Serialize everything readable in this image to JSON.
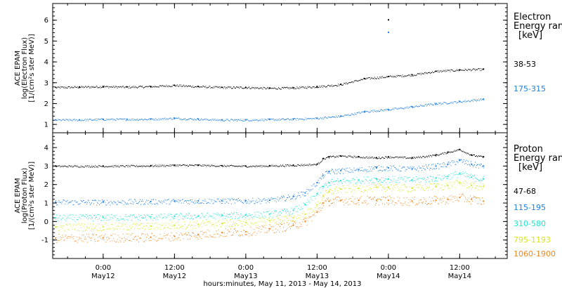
{
  "figure": {
    "xlabel": "hours:minutes, May 11, 2013 - May 14, 2013",
    "x_ticks": [
      {
        "hours": 12,
        "time": "0:00",
        "day": "May12"
      },
      {
        "hours": 24,
        "time": "12:00",
        "day": "May12"
      },
      {
        "hours": 36,
        "time": "0:00",
        "day": "May13"
      },
      {
        "hours": 48,
        "time": "12:00",
        "day": "May13"
      },
      {
        "hours": 60,
        "time": "0:00",
        "day": "May14"
      },
      {
        "hours": 72,
        "time": "12:00",
        "day": "May14"
      }
    ],
    "x_range_hours": [
      3.5,
      80
    ]
  },
  "chart_data": [
    {
      "type": "scatter",
      "panel": "electron",
      "ylabel": [
        "ACE EPAM",
        "log(Electron Flux)",
        "[1/(cm²s ster MeV)]"
      ],
      "ylim": [
        0.6,
        6.8
      ],
      "y_ticks": [
        1,
        2,
        3,
        4,
        5,
        6
      ],
      "legend_title": [
        "Electron",
        "Energy ran",
        "[keV]"
      ],
      "series": [
        {
          "name": "38-53",
          "color": "#000000",
          "x": [
            4,
            8,
            12,
            16,
            20,
            24,
            28,
            32,
            36,
            40,
            44,
            48,
            52,
            56,
            60,
            64,
            68,
            72,
            76
          ],
          "y": [
            2.78,
            2.8,
            2.82,
            2.8,
            2.82,
            2.88,
            2.82,
            2.78,
            2.78,
            2.74,
            2.76,
            2.82,
            2.92,
            3.2,
            3.3,
            3.38,
            3.55,
            3.62,
            3.65
          ]
        },
        {
          "name": "175-315",
          "color": "#1f7fdf",
          "x": [
            4,
            8,
            12,
            16,
            20,
            24,
            28,
            32,
            36,
            40,
            44,
            48,
            52,
            56,
            60,
            64,
            68,
            72,
            76
          ],
          "y": [
            1.22,
            1.22,
            1.25,
            1.25,
            1.26,
            1.3,
            1.26,
            1.22,
            1.22,
            1.24,
            1.26,
            1.3,
            1.4,
            1.62,
            1.72,
            1.85,
            2.0,
            2.1,
            2.22
          ]
        }
      ],
      "spike": {
        "x": 59.9,
        "values": [
          6.05,
          5.45
        ]
      }
    },
    {
      "type": "scatter",
      "panel": "proton",
      "ylabel": [
        "ACE EPAM",
        "log(Proton Flux)",
        "[1/(cm²s ster MeV)]"
      ],
      "ylim": [
        -2.0,
        4.8
      ],
      "y_ticks": [
        -1,
        0,
        1,
        2,
        3,
        4
      ],
      "legend_title": [
        "Proton",
        "Energy ran",
        "[keV]"
      ],
      "series": [
        {
          "name": "47-68",
          "color": "#000000",
          "x": [
            4,
            12,
            20,
            24,
            28,
            32,
            36,
            40,
            44,
            48,
            49,
            50,
            52,
            55,
            58,
            60,
            64,
            68,
            70,
            72,
            74,
            76
          ],
          "y": [
            3.0,
            3.0,
            3.02,
            3.05,
            3.05,
            3.02,
            3.0,
            3.02,
            3.05,
            3.1,
            3.4,
            3.5,
            3.55,
            3.5,
            3.45,
            3.5,
            3.45,
            3.6,
            3.75,
            3.9,
            3.6,
            3.5
          ]
        },
        {
          "name": "115-195",
          "color": "#1f7fdf",
          "x": [
            4,
            12,
            20,
            24,
            28,
            32,
            36,
            40,
            44,
            46,
            48,
            49,
            50,
            52,
            55,
            58,
            60,
            64,
            68,
            70,
            72,
            74,
            76
          ],
          "y": [
            1.05,
            1.05,
            1.08,
            1.1,
            1.12,
            1.12,
            1.12,
            1.15,
            1.35,
            1.55,
            2.1,
            2.5,
            2.7,
            2.75,
            2.8,
            2.9,
            2.9,
            2.85,
            3.0,
            3.1,
            3.3,
            3.1,
            3.0
          ]
        },
        {
          "name": "310-580",
          "color": "#1ee3cf",
          "x": [
            4,
            12,
            20,
            24,
            28,
            32,
            36,
            40,
            44,
            46,
            48,
            49,
            50,
            52,
            55,
            58,
            60,
            64,
            68,
            70,
            72,
            74,
            76
          ],
          "y": [
            0.2,
            0.22,
            0.25,
            0.28,
            0.3,
            0.32,
            0.35,
            0.4,
            0.6,
            0.9,
            1.5,
            1.9,
            2.1,
            2.2,
            2.25,
            2.3,
            2.3,
            2.25,
            2.35,
            2.45,
            2.6,
            2.4,
            2.3
          ]
        },
        {
          "name": "795-1193",
          "color": "#d8e61e",
          "x": [
            4,
            12,
            20,
            24,
            28,
            32,
            36,
            40,
            44,
            46,
            48,
            49,
            50,
            52,
            55,
            58,
            60,
            64,
            68,
            70,
            72,
            74,
            76
          ],
          "y": [
            -0.3,
            -0.28,
            -0.25,
            -0.2,
            -0.15,
            -0.1,
            -0.05,
            0.05,
            0.2,
            0.4,
            0.9,
            1.4,
            1.6,
            1.75,
            1.8,
            1.85,
            1.85,
            1.8,
            1.9,
            1.95,
            2.1,
            1.95,
            1.9
          ]
        },
        {
          "name": "1060-1900",
          "color": "#f0871e",
          "x": [
            4,
            12,
            20,
            24,
            28,
            32,
            36,
            40,
            44,
            46,
            48,
            49,
            50,
            52,
            55,
            58,
            60,
            64,
            68,
            70,
            72,
            74,
            76
          ],
          "y": [
            -0.9,
            -0.88,
            -0.85,
            -0.8,
            -0.7,
            -0.6,
            -0.55,
            -0.4,
            -0.2,
            0.0,
            0.5,
            1.0,
            1.1,
            1.15,
            1.15,
            1.15,
            1.15,
            1.1,
            1.15,
            1.2,
            1.3,
            1.2,
            1.1
          ]
        }
      ]
    }
  ]
}
